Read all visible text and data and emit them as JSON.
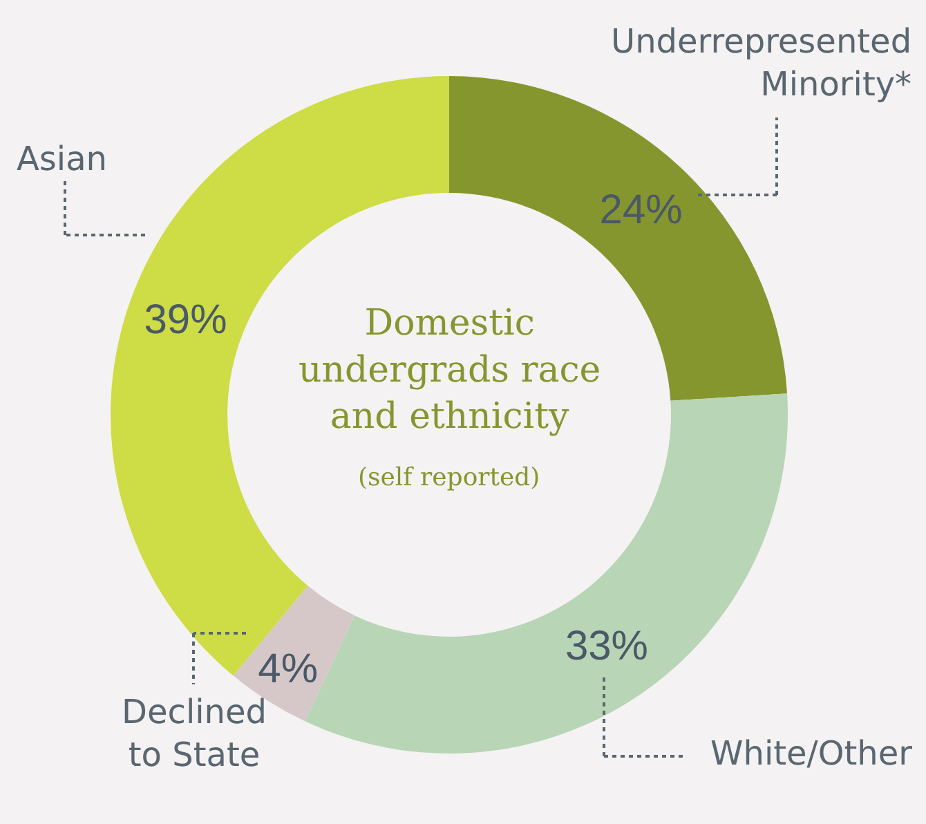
{
  "chart_data": {
    "type": "donut",
    "title": "Domestic undergrads race and ethnicity",
    "subtitle": "(self reported)",
    "categories": [
      "Underrepresented Minority*",
      "White/Other",
      "Declined to State",
      "Asian"
    ],
    "values": [
      24,
      33,
      4,
      39
    ],
    "value_labels": [
      "24%",
      "33%",
      "4%",
      "39%"
    ],
    "colors": [
      "#86962f",
      "#b8d5b5",
      "#d6c8c8",
      "#cedc45"
    ],
    "legend": false
  }
}
